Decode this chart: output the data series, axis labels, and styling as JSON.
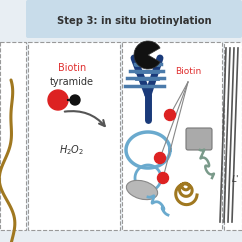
{
  "title": "Step 3: in situ biotinylation",
  "title_bg_color": "#c8dcea",
  "background_color": "#e8eef3",
  "white": "#ffffff",
  "dashed_border_color": "#999999",
  "biotin_red": "#e03030",
  "dark_text": "#333333",
  "arrow_color": "#555555",
  "dark_blue": "#1a3a7a",
  "mid_blue": "#4a7aaa",
  "light_blue": "#6aaace",
  "gray": "#aaaaaa",
  "dark_gray": "#666666",
  "olive": "#a07820",
  "dark_olive": "#7a6020",
  "black": "#111111",
  "red": "#dd2222",
  "panel_gray": "#888888"
}
